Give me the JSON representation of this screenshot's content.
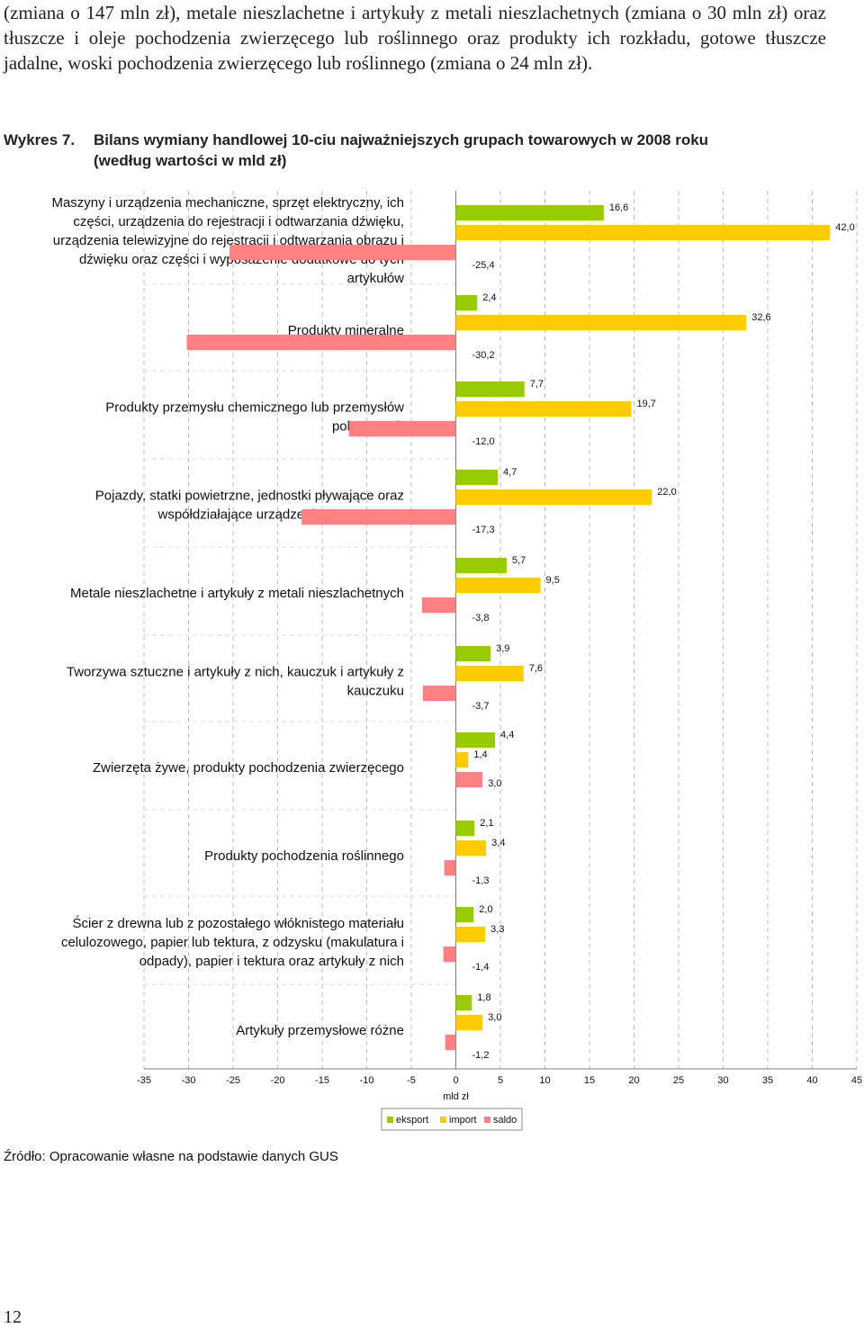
{
  "intro_text": "(zmiana o 147 mln zł), metale nieszlachetne i artykuły z metali nieszlachetnych (zmiana o 30 mln zł) oraz tłuszcze i oleje pochodzenia zwierzęcego lub roślinnego oraz produkty ich rozkładu, gotowe tłuszcze jadalne, woski pochodzenia zwierzęcego lub roślinnego (zmiana o 24 mln zł).",
  "figure_label": "Wykres 7.",
  "figure_title_line1": "Bilans wymiany handlowej 10-ciu najważniejszych grupach towarowych w 2008 roku",
  "figure_title_line2": "(według wartości w mld zł)",
  "source_note": "Źródło: Opracowanie własne na podstawie danych GUS",
  "page_number": "12",
  "chart_data": {
    "type": "bar",
    "orientation": "horizontal",
    "xlabel": "mld zł",
    "xlim": [
      -35,
      45
    ],
    "x_ticks": [
      -35,
      -30,
      -25,
      -20,
      -15,
      -10,
      -5,
      0,
      5,
      10,
      15,
      20,
      25,
      30,
      35,
      40,
      45
    ],
    "grid": "vertical dashed",
    "legend_position": "bottom",
    "colors": {
      "eksport": "#99cc00",
      "import": "#ffcc00",
      "saldo": "#ff8080"
    },
    "series_names": [
      "eksport",
      "import",
      "saldo"
    ],
    "categories": [
      [
        "Maszyny i urządzenia mechaniczne, sprzęt elektryczny, ich",
        "części, urządzenia do rejestracji i odtwarzania dźwięku,",
        "urządzenia telewizyjne do rejestracji i odtwarzania obrazu i",
        "dźwięku oraz części i wyposażenie dodatkowe do tych",
        "artykułów"
      ],
      [
        "Produkty mineralne"
      ],
      [
        "Produkty przemysłu chemicznego lub przemysłów",
        "pokrewnych"
      ],
      [
        "Pojazdy, statki powietrzne, jednostki pływające oraz",
        "współdziałające urządzenia transportowe"
      ],
      [
        "Metale nieszlachetne i artykuły z metali nieszlachetnych"
      ],
      [
        "Tworzywa sztuczne i artykuły z nich, kauczuk i artykuły z",
        "kauczuku"
      ],
      [
        "Zwierzęta żywe, produkty pochodzenia zwierzęcego"
      ],
      [
        "Produkty pochodzenia roślinnego"
      ],
      [
        "Ścier z drewna lub z pozostałego włóknistego materiału",
        "celulozowego, papier lub tektura, z odzysku (makulatura i",
        "odpady), papier i tektura oraz  artykuły z nich"
      ],
      [
        "Artykuły przemysłowe różne"
      ]
    ],
    "values": [
      [
        16.6,
        42.0,
        -25.4
      ],
      [
        2.4,
        32.6,
        -30.2
      ],
      [
        7.7,
        19.7,
        -12.0
      ],
      [
        4.7,
        22.0,
        -17.3
      ],
      [
        5.7,
        9.5,
        -3.8
      ],
      [
        3.9,
        7.6,
        -3.7
      ],
      [
        4.4,
        1.4,
        3.0
      ],
      [
        2.1,
        3.4,
        -1.3
      ],
      [
        2.0,
        3.3,
        -1.4
      ],
      [
        1.8,
        3.0,
        -1.2
      ]
    ],
    "value_labels": [
      [
        "16,6",
        "42,0",
        "-25,4"
      ],
      [
        "2,4",
        "32,6",
        "-30,2"
      ],
      [
        "7,7",
        "19,7",
        "-12,0"
      ],
      [
        "4,7",
        "22,0",
        "-17,3"
      ],
      [
        "5,7",
        "9,5",
        "-3,8"
      ],
      [
        "3,9",
        "7,6",
        "-3,7"
      ],
      [
        "4,4",
        "1,4",
        "3,0"
      ],
      [
        "2,1",
        "3,4",
        "-1,3"
      ],
      [
        "2,0",
        "3,3",
        "-1,4"
      ],
      [
        "1,8",
        "3,0",
        "-1,2"
      ]
    ]
  }
}
